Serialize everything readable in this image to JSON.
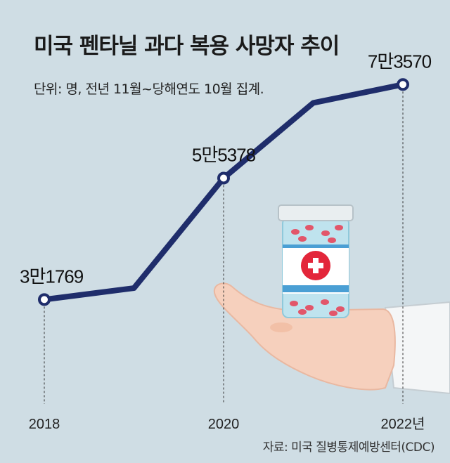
{
  "title": "미국 펜타닐 과다 복용 사망자 추이",
  "subtitle": "단위: 명, 전년 11월~당해연도 10월 집계.",
  "source": "자료: 미국 질병통제예방센터(CDC)",
  "colors": {
    "background": "#cfdde4",
    "line": "#1f2d6b",
    "marker_fill": "#ffffff"
  },
  "chart_data": {
    "type": "line",
    "title": "미국 펜타닐 과다 복용 사망자 추이",
    "subtitle": "단위: 명, 전년 11월~당해연도 10월 집계.",
    "x": [
      2018,
      2019,
      2020,
      2021,
      2022
    ],
    "series": [
      {
        "values": [
          31769,
          34000,
          55378,
          70000,
          73570
        ]
      }
    ],
    "x_tick_labels": [
      "2018",
      "2020",
      "2022년"
    ],
    "x_tick_values": [
      2018,
      2020,
      2022
    ],
    "labeled_points": [
      {
        "x": 2018,
        "value": 31769,
        "label": "3만1769"
      },
      {
        "x": 2020,
        "value": 55378,
        "label": "5만5378"
      },
      {
        "x": 2022,
        "value": 73570,
        "label": "7만3570"
      }
    ],
    "ylim": [
      0,
      90000
    ],
    "grid": false,
    "legend": "none"
  },
  "illustration": {
    "description_icon": "hand-holding-pill-bottle-icon"
  }
}
